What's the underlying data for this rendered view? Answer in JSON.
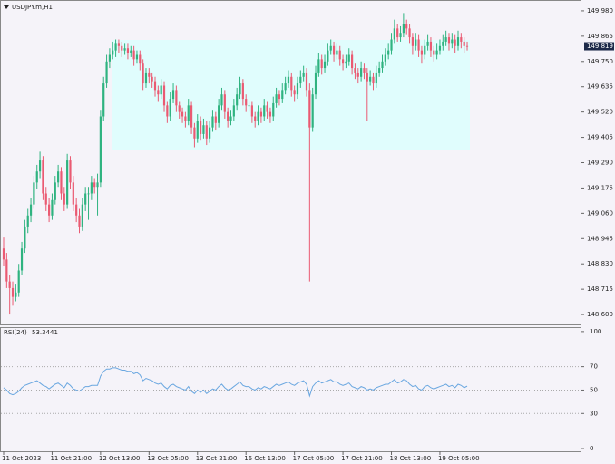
{
  "chart_data": {
    "type": "candlestick",
    "title": "USDJPY.m,H1",
    "categories": [
      "11 Oct 2023",
      null,
      null,
      null,
      null,
      null,
      null,
      null,
      null,
      null,
      null,
      null,
      null,
      null,
      null,
      null,
      "11 Oct 21:00",
      null,
      null,
      null,
      null,
      null,
      null,
      null,
      null,
      null,
      null,
      null,
      null,
      null,
      null,
      null,
      "12 Oct 13:00",
      null,
      null,
      null,
      null,
      null,
      null,
      null,
      null,
      null,
      null,
      null,
      null,
      null,
      null,
      null,
      "13 Oct 05:00",
      null,
      null,
      null,
      null,
      null,
      null,
      null,
      null,
      null,
      null,
      null,
      null,
      null,
      null,
      null,
      "13 Oct 21:00",
      null,
      null,
      null,
      null,
      null,
      null,
      null,
      null,
      null,
      null,
      null,
      null,
      null,
      null,
      null,
      "16 Oct 13:00",
      null,
      null,
      null,
      null,
      null,
      null,
      null,
      null,
      null,
      null,
      null,
      null,
      null,
      null,
      null,
      "17 Oct 05:00",
      null,
      null,
      null,
      null,
      null,
      null,
      null,
      null,
      null,
      null,
      null,
      null,
      null,
      null,
      null,
      "17 Oct 21:00",
      null,
      null,
      null,
      null,
      null,
      null,
      null,
      null,
      null,
      null,
      null,
      null,
      null,
      null,
      null,
      "18 Oct 13:00",
      null,
      null,
      null,
      null,
      null,
      null,
      null,
      null,
      null,
      null,
      null,
      null,
      null,
      null,
      null,
      "19 Oct 05:00",
      null,
      null,
      null,
      null,
      null,
      null,
      null,
      null,
      null
    ],
    "open": [
      148.9,
      148.85,
      148.75,
      148.72,
      148.68,
      148.7,
      148.8,
      148.9,
      149.0,
      149.05,
      149.1,
      149.2,
      149.25,
      149.3,
      149.15,
      149.1,
      149.05,
      149.12,
      149.2,
      149.25,
      149.15,
      149.1,
      149.3,
      149.2,
      149.1,
      149.05,
      149.0,
      149.1,
      149.15,
      149.15,
      149.2,
      149.18,
      149.2,
      149.5,
      149.65,
      149.75,
      149.78,
      149.8,
      149.83,
      149.82,
      149.8,
      149.81,
      149.79,
      149.8,
      149.76,
      149.78,
      149.74,
      149.65,
      149.7,
      149.68,
      149.66,
      149.62,
      149.6,
      149.64,
      149.55,
      149.5,
      149.58,
      149.62,
      149.55,
      149.52,
      149.5,
      149.48,
      149.55,
      149.45,
      149.4,
      149.48,
      149.42,
      149.46,
      149.4,
      149.45,
      149.5,
      149.47,
      149.55,
      149.6,
      149.52,
      149.48,
      149.5,
      149.55,
      149.6,
      149.65,
      149.58,
      149.55,
      149.55,
      149.5,
      149.48,
      149.52,
      149.5,
      149.55,
      149.52,
      149.5,
      149.56,
      149.6,
      149.58,
      149.62,
      149.65,
      149.68,
      149.62,
      149.6,
      149.65,
      149.68,
      149.7,
      149.62,
      149.45,
      149.6,
      149.7,
      149.76,
      149.72,
      149.75,
      149.8,
      149.82,
      149.78,
      149.8,
      149.76,
      149.74,
      149.75,
      149.78,
      149.72,
      149.7,
      149.68,
      149.72,
      149.7,
      149.66,
      149.68,
      149.65,
      149.7,
      149.72,
      149.75,
      149.78,
      149.8,
      149.85,
      149.9,
      149.86,
      149.88,
      149.92,
      149.9,
      149.86,
      149.82,
      149.85,
      149.8,
      149.78,
      149.82,
      149.84,
      149.8,
      149.78,
      149.8,
      149.82,
      149.84,
      149.86,
      149.83,
      149.85,
      149.82,
      149.86,
      149.84,
      149.82
    ],
    "high": [
      148.95,
      148.88,
      148.78,
      148.75,
      148.74,
      148.83,
      148.93,
      149.03,
      149.08,
      149.13,
      149.23,
      149.28,
      149.34,
      149.32,
      149.18,
      149.13,
      149.15,
      149.23,
      149.28,
      149.27,
      149.18,
      149.33,
      149.32,
      149.23,
      149.13,
      149.08,
      149.13,
      149.18,
      149.18,
      149.23,
      149.22,
      149.24,
      149.53,
      149.68,
      149.78,
      149.81,
      149.84,
      149.85,
      149.85,
      149.84,
      149.83,
      149.83,
      149.82,
      149.82,
      149.8,
      149.8,
      149.76,
      149.72,
      149.72,
      149.7,
      149.68,
      149.64,
      149.67,
      149.66,
      149.57,
      149.61,
      149.65,
      149.64,
      149.57,
      149.54,
      149.52,
      149.58,
      149.57,
      149.47,
      149.51,
      149.5,
      149.49,
      149.48,
      149.48,
      149.53,
      149.52,
      149.58,
      149.63,
      149.62,
      149.54,
      149.53,
      149.58,
      149.63,
      149.68,
      149.67,
      149.6,
      149.57,
      149.57,
      149.52,
      149.55,
      149.54,
      149.58,
      149.57,
      149.54,
      149.59,
      149.63,
      149.62,
      149.65,
      149.68,
      149.71,
      149.7,
      149.64,
      149.68,
      149.71,
      149.73,
      149.72,
      149.65,
      149.63,
      149.73,
      149.79,
      149.78,
      149.78,
      149.83,
      149.85,
      149.84,
      149.83,
      149.82,
      149.78,
      149.78,
      149.81,
      149.8,
      149.74,
      149.72,
      149.75,
      149.74,
      149.72,
      149.71,
      149.7,
      149.73,
      149.75,
      149.78,
      149.81,
      149.83,
      149.88,
      149.94,
      149.92,
      149.91,
      149.97,
      149.94,
      149.92,
      149.88,
      149.88,
      149.87,
      149.82,
      149.85,
      149.87,
      149.86,
      149.82,
      149.83,
      149.85,
      149.87,
      149.89,
      149.88,
      149.88,
      149.87,
      149.89,
      149.88,
      149.86,
      149.84
    ],
    "low": [
      148.82,
      148.72,
      148.6,
      148.64,
      148.66,
      148.68,
      148.78,
      148.88,
      148.97,
      149.02,
      149.08,
      149.17,
      149.22,
      149.12,
      149.07,
      149.02,
      149.03,
      149.1,
      149.18,
      149.12,
      149.07,
      149.08,
      149.17,
      149.07,
      149.02,
      148.97,
      148.98,
      149.07,
      149.03,
      149.12,
      149.15,
      149.05,
      149.18,
      149.48,
      149.63,
      149.72,
      149.76,
      149.77,
      149.79,
      149.77,
      149.78,
      149.76,
      149.77,
      149.73,
      149.74,
      149.71,
      149.62,
      149.63,
      149.65,
      149.63,
      149.59,
      149.57,
      149.58,
      149.52,
      149.47,
      149.48,
      149.56,
      149.52,
      149.49,
      149.47,
      149.45,
      149.46,
      149.42,
      149.36,
      149.38,
      149.39,
      149.4,
      149.37,
      149.38,
      149.43,
      149.44,
      149.45,
      149.53,
      149.49,
      149.45,
      149.46,
      149.48,
      149.53,
      149.58,
      149.55,
      149.52,
      149.52,
      149.47,
      149.45,
      149.46,
      149.47,
      149.48,
      149.49,
      149.47,
      149.48,
      149.54,
      149.55,
      149.56,
      149.6,
      149.63,
      149.59,
      149.57,
      149.58,
      149.63,
      149.66,
      149.59,
      148.75,
      149.43,
      149.58,
      149.68,
      149.69,
      149.7,
      149.73,
      149.78,
      149.75,
      149.76,
      149.73,
      149.71,
      149.72,
      149.73,
      149.69,
      149.67,
      149.65,
      149.66,
      149.67,
      149.48,
      149.64,
      149.62,
      149.63,
      149.68,
      149.7,
      149.73,
      149.76,
      149.78,
      149.83,
      149.84,
      149.84,
      149.86,
      149.87,
      149.83,
      149.78,
      149.8,
      149.77,
      149.74,
      149.76,
      149.8,
      149.77,
      149.75,
      149.76,
      149.78,
      149.8,
      149.82,
      149.8,
      149.81,
      149.79,
      149.8,
      149.81,
      149.79,
      149.8
    ],
    "close": [
      148.85,
      148.75,
      148.72,
      148.68,
      148.7,
      148.8,
      148.9,
      149.0,
      149.05,
      149.1,
      149.2,
      149.25,
      149.3,
      149.15,
      149.1,
      149.05,
      149.12,
      149.2,
      149.25,
      149.15,
      149.1,
      149.3,
      149.2,
      149.1,
      149.05,
      149.0,
      149.1,
      149.15,
      149.15,
      149.2,
      149.18,
      149.2,
      149.5,
      149.65,
      149.75,
      149.78,
      149.8,
      149.83,
      149.82,
      149.8,
      149.81,
      149.79,
      149.8,
      149.76,
      149.78,
      149.74,
      149.65,
      149.7,
      149.68,
      149.66,
      149.62,
      149.6,
      149.64,
      149.55,
      149.5,
      149.58,
      149.62,
      149.55,
      149.52,
      149.5,
      149.48,
      149.55,
      149.45,
      149.4,
      149.48,
      149.42,
      149.46,
      149.4,
      149.45,
      149.5,
      149.47,
      149.55,
      149.6,
      149.52,
      149.48,
      149.5,
      149.55,
      149.6,
      149.65,
      149.58,
      149.55,
      149.55,
      149.5,
      149.48,
      149.52,
      149.5,
      149.55,
      149.52,
      149.5,
      149.56,
      149.6,
      149.58,
      149.62,
      149.65,
      149.68,
      149.62,
      149.6,
      149.65,
      149.68,
      149.7,
      149.62,
      149.45,
      149.6,
      149.7,
      149.76,
      149.72,
      149.75,
      149.8,
      149.82,
      149.78,
      149.8,
      149.76,
      149.74,
      149.75,
      149.78,
      149.72,
      149.7,
      149.68,
      149.72,
      149.7,
      149.66,
      149.68,
      149.65,
      149.7,
      149.72,
      149.75,
      149.78,
      149.8,
      149.85,
      149.9,
      149.86,
      149.88,
      149.92,
      149.9,
      149.86,
      149.82,
      149.85,
      149.8,
      149.78,
      149.82,
      149.84,
      149.8,
      149.78,
      149.8,
      149.82,
      149.84,
      149.86,
      149.83,
      149.85,
      149.82,
      149.86,
      149.84,
      149.82,
      149.819
    ],
    "up_color": "#2fb380",
    "down_color": "#ea5a72",
    "ylim": [
      148.555,
      150.025
    ],
    "yticks": [
      {
        "value": 149.98,
        "label": "149.980"
      },
      149.865,
      {
        "value": 149.75,
        "label": "149.750"
      },
      149.635,
      {
        "value": 149.52,
        "label": "149.520"
      },
      149.405,
      {
        "value": 149.29,
        "label": "149.290"
      },
      149.175,
      {
        "value": 149.06,
        "label": "149.060"
      },
      148.945,
      {
        "value": 148.83,
        "label": "148.830"
      },
      148.715,
      {
        "value": 148.6,
        "label": "148.600"
      }
    ],
    "indicator": {
      "title": "RSI(24)",
      "color": "#6aa7e0",
      "ylim": [
        -2.3,
        103
      ],
      "yticks": [
        0,
        30,
        50,
        70,
        100
      ],
      "values": [
        52,
        50,
        47,
        46,
        47,
        49,
        52,
        54,
        55,
        56,
        57,
        58,
        56,
        54,
        53,
        51,
        53,
        55,
        56,
        54,
        52,
        56,
        54,
        51,
        50,
        49,
        51,
        53,
        53,
        54,
        54,
        54,
        62,
        66,
        68,
        68,
        69,
        69,
        68,
        67,
        67,
        66,
        66,
        64,
        65,
        63,
        58,
        60,
        59,
        58,
        56,
        55,
        56,
        53,
        51,
        54,
        55,
        53,
        52,
        51,
        50,
        53,
        49,
        47,
        50,
        48,
        50,
        47,
        49,
        51,
        50,
        53,
        55,
        52,
        50,
        51,
        53,
        55,
        57,
        54,
        53,
        53,
        51,
        50,
        52,
        51,
        53,
        52,
        51,
        53,
        55,
        54,
        55,
        56,
        57,
        55,
        54,
        56,
        57,
        58,
        55,
        45,
        53,
        56,
        58,
        56,
        57,
        58,
        59,
        57,
        57,
        55,
        54,
        55,
        56,
        53,
        52,
        51,
        53,
        52,
        50,
        51,
        50,
        52,
        53,
        54,
        55,
        55,
        57,
        59,
        56,
        57,
        59,
        58,
        55,
        53,
        54,
        51,
        50,
        53,
        54,
        52,
        51,
        52,
        53,
        54,
        55,
        53,
        54,
        52,
        55,
        54,
        52,
        53.3441
      ]
    }
  }
}
